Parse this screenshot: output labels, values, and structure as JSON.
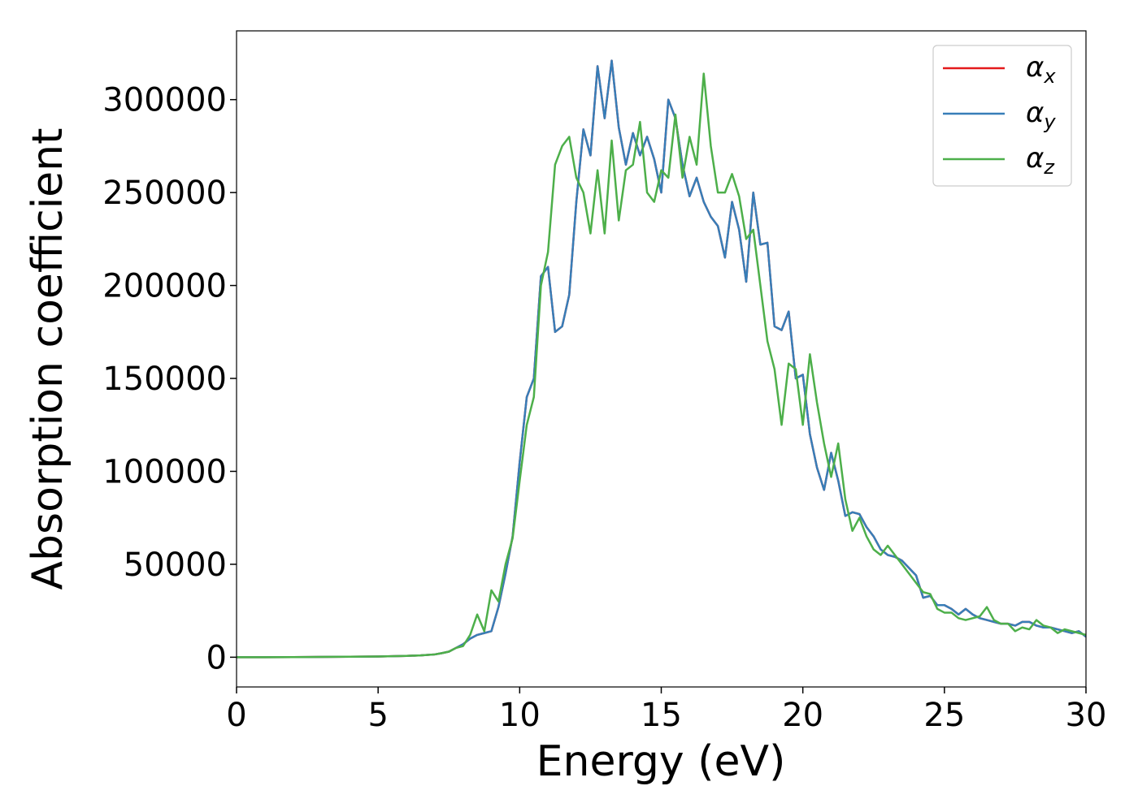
{
  "chart_data": {
    "type": "line",
    "xlabel": "Energy (eV)",
    "ylabel": "Absorption coefficient",
    "xlim": [
      0,
      30
    ],
    "ylim": [
      -16000,
      337000
    ],
    "xticks": [
      0,
      5,
      10,
      15,
      20,
      25,
      30
    ],
    "yticks": [
      0,
      50000,
      100000,
      150000,
      200000,
      250000,
      300000
    ],
    "grid": false,
    "legend": "upper right",
    "x": [
      0,
      1,
      2,
      3,
      4,
      5,
      6,
      6.5,
      7,
      7.25,
      7.5,
      7.75,
      8,
      8.25,
      8.5,
      8.75,
      9,
      9.25,
      9.5,
      9.75,
      10,
      10.25,
      10.5,
      10.75,
      11,
      11.25,
      11.5,
      11.75,
      12,
      12.25,
      12.5,
      12.75,
      13,
      13.25,
      13.5,
      13.75,
      14,
      14.25,
      14.5,
      14.75,
      15,
      15.25,
      15.5,
      15.75,
      16,
      16.25,
      16.5,
      16.75,
      17,
      17.25,
      17.5,
      17.75,
      18,
      18.25,
      18.5,
      18.75,
      19,
      19.25,
      19.5,
      19.75,
      20,
      20.25,
      20.5,
      20.75,
      21,
      21.25,
      21.5,
      21.75,
      22,
      22.25,
      22.5,
      22.75,
      23,
      23.25,
      23.5,
      23.75,
      24,
      24.25,
      24.5,
      24.75,
      25,
      25.25,
      25.5,
      25.75,
      26,
      26.25,
      26.5,
      26.75,
      27,
      27.25,
      27.5,
      27.75,
      28,
      28.25,
      28.5,
      28.75,
      29,
      29.25,
      29.5,
      29.75,
      30
    ],
    "series": [
      {
        "name": "αx",
        "color": "#e41a1c",
        "values": [
          0,
          0,
          50,
          150,
          250,
          400,
          700,
          1000,
          1500,
          2200,
          3000,
          5000,
          7000,
          10000,
          12000,
          13000,
          14000,
          27000,
          45000,
          65000,
          105000,
          140000,
          150000,
          205000,
          210000,
          175000,
          178000,
          195000,
          245000,
          284000,
          270000,
          318000,
          290000,
          321000,
          285000,
          265000,
          282000,
          270000,
          280000,
          268000,
          250000,
          300000,
          290000,
          265000,
          248000,
          258000,
          245000,
          237000,
          232000,
          215000,
          245000,
          230000,
          202000,
          250000,
          222000,
          223000,
          178000,
          176000,
          186000,
          150000,
          152000,
          120000,
          102000,
          90000,
          110000,
          95000,
          76000,
          78000,
          77000,
          70000,
          65000,
          58000,
          55000,
          54000,
          52000,
          48000,
          44000,
          32000,
          33000,
          28000,
          28000,
          26000,
          23000,
          26000,
          23000,
          21000,
          20000,
          19000,
          18000,
          18000,
          17000,
          19000,
          19000,
          17000,
          16000,
          16000,
          15000,
          14000,
          13000,
          14000,
          11000
        ]
      },
      {
        "name": "αy",
        "color": "#377eb8",
        "values": [
          0,
          0,
          50,
          150,
          250,
          400,
          700,
          1000,
          1500,
          2200,
          3000,
          5000,
          7000,
          10000,
          12000,
          13000,
          14000,
          27000,
          45000,
          65000,
          105000,
          140000,
          150000,
          205000,
          210000,
          175000,
          178000,
          195000,
          245000,
          284000,
          270000,
          318000,
          290000,
          321000,
          285000,
          265000,
          282000,
          270000,
          280000,
          268000,
          250000,
          300000,
          290000,
          265000,
          248000,
          258000,
          245000,
          237000,
          232000,
          215000,
          245000,
          230000,
          202000,
          250000,
          222000,
          223000,
          178000,
          176000,
          186000,
          150000,
          152000,
          120000,
          102000,
          90000,
          110000,
          95000,
          76000,
          78000,
          77000,
          70000,
          65000,
          58000,
          55000,
          54000,
          52000,
          48000,
          44000,
          32000,
          33000,
          28000,
          28000,
          26000,
          23000,
          26000,
          23000,
          21000,
          20000,
          19000,
          18000,
          18000,
          17000,
          19000,
          19000,
          17000,
          16000,
          16000,
          15000,
          14000,
          13000,
          14000,
          11000
        ]
      },
      {
        "name": "αz",
        "color": "#4daf4a",
        "values": [
          0,
          0,
          50,
          150,
          250,
          400,
          700,
          1000,
          1500,
          2200,
          3000,
          5000,
          6000,
          12000,
          23000,
          14000,
          36000,
          30000,
          50000,
          64000,
          95000,
          125000,
          140000,
          200000,
          218000,
          265000,
          275000,
          280000,
          258000,
          250000,
          228000,
          262000,
          228000,
          278000,
          235000,
          262000,
          265000,
          288000,
          250000,
          245000,
          262000,
          258000,
          292000,
          258000,
          280000,
          265000,
          314000,
          275000,
          250000,
          250000,
          260000,
          248000,
          225000,
          230000,
          200000,
          170000,
          155000,
          125000,
          158000,
          155000,
          125000,
          163000,
          137000,
          115000,
          97000,
          115000,
          85000,
          68000,
          75000,
          65000,
          58000,
          55000,
          60000,
          55000,
          50000,
          45000,
          40000,
          35000,
          34000,
          26000,
          24000,
          24000,
          21000,
          20000,
          21000,
          22000,
          27000,
          20000,
          18000,
          18000,
          14000,
          16000,
          15000,
          20000,
          17000,
          16000,
          13000,
          15000,
          14000,
          13000,
          12000
        ]
      }
    ]
  }
}
